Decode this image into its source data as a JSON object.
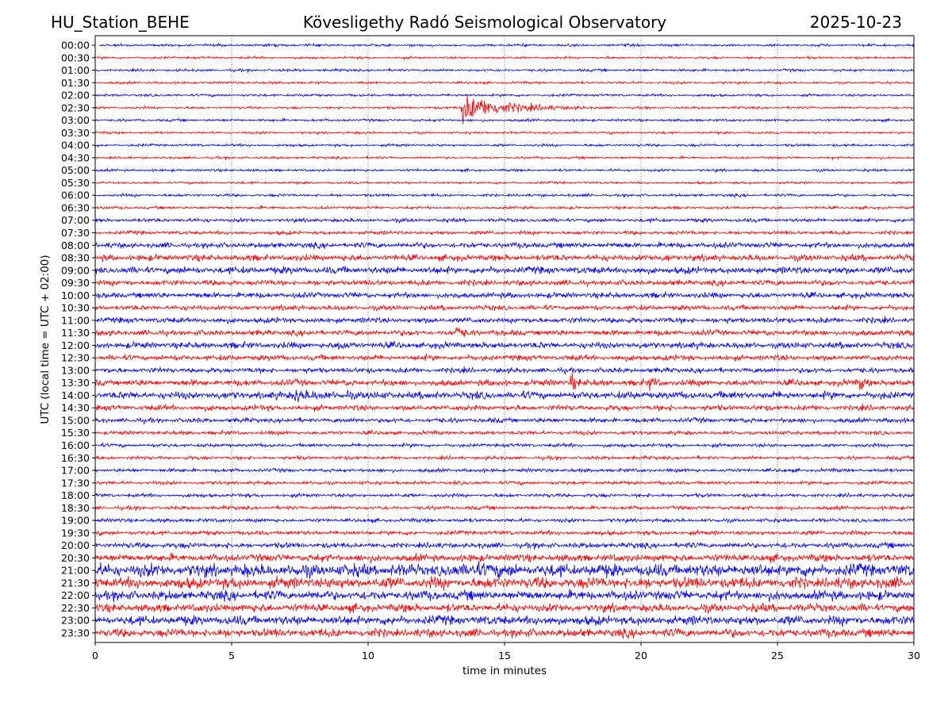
{
  "chart_data": {
    "type": "line",
    "title_left": "HU_Station_BEHE",
    "title": "Kövesligethy Radó Seismological Observatory",
    "title_right": "2025-10-23",
    "xlabel": "time in minutes",
    "ylabel": "UTC (local time = UTC + 02:00)",
    "xlim": [
      0,
      30
    ],
    "xticks": [
      "0",
      "5",
      "10",
      "15",
      "20",
      "25",
      "30"
    ],
    "xtick_values": [
      0,
      5,
      10,
      15,
      20,
      25,
      30
    ],
    "grid": "vertical dotted at 5-minute intervals",
    "colors": [
      "#0000ff",
      "#ff0000"
    ],
    "rows": [
      "00:00",
      "00:30",
      "01:00",
      "01:30",
      "02:00",
      "02:30",
      "03:00",
      "03:30",
      "04:00",
      "04:30",
      "05:00",
      "05:30",
      "06:00",
      "06:30",
      "07:00",
      "07:30",
      "08:00",
      "08:30",
      "09:00",
      "09:30",
      "10:00",
      "10:30",
      "11:00",
      "11:30",
      "12:00",
      "12:30",
      "13:00",
      "13:30",
      "14:00",
      "14:30",
      "15:00",
      "15:30",
      "16:00",
      "16:30",
      "17:00",
      "17:30",
      "18:00",
      "18:30",
      "19:00",
      "19:30",
      "20:00",
      "20:30",
      "21:00",
      "21:30",
      "22:00",
      "22:30",
      "23:00",
      "23:30"
    ],
    "noise_level_relative": [
      1.3,
      1.2,
      1.3,
      1.2,
      1.3,
      1.2,
      1.3,
      1.2,
      1.3,
      1.2,
      1.3,
      1.2,
      1.4,
      1.4,
      1.9,
      1.9,
      2.8,
      3.2,
      3.6,
      2.8,
      2.8,
      2.5,
      2.8,
      2.8,
      3.2,
      2.8,
      2.6,
      3.2,
      3.8,
      2.8,
      2.4,
      2.0,
      1.8,
      1.8,
      1.8,
      1.8,
      1.8,
      1.9,
      1.9,
      2.2,
      2.8,
      3.8,
      6.5,
      5.8,
      4.8,
      4.2,
      4.8,
      4.3
    ],
    "events": [
      {
        "row": "02:30",
        "start_min": 13.4,
        "peak_amplitude_relative": 22,
        "duration_min": 4.5
      },
      {
        "row": "11:30",
        "start_min": 13.2,
        "peak_amplitude_relative": 8,
        "duration_min": 1.0
      },
      {
        "row": "12:00",
        "start_min": 8.9,
        "peak_amplitude_relative": 6,
        "duration_min": 0.8
      },
      {
        "row": "08:30",
        "start_min": 20.8,
        "peak_amplitude_relative": 6,
        "duration_min": 0.6
      },
      {
        "row": "13:30",
        "start_min": 17.4,
        "peak_amplitude_relative": 14,
        "duration_min": 0.6
      },
      {
        "row": "13:30",
        "start_min": 20.3,
        "peak_amplitude_relative": 7,
        "duration_min": 0.8
      },
      {
        "row": "13:30",
        "start_min": 28.0,
        "peak_amplitude_relative": 10,
        "duration_min": 0.7
      },
      {
        "row": "14:00",
        "start_min": 7.3,
        "peak_amplitude_relative": 12,
        "duration_min": 1.2
      },
      {
        "row": "14:00",
        "start_min": 9.2,
        "peak_amplitude_relative": 7,
        "duration_min": 0.6
      },
      {
        "row": "21:00",
        "start_min": 13.8,
        "peak_amplitude_relative": 10,
        "duration_min": 1.5
      }
    ]
  }
}
